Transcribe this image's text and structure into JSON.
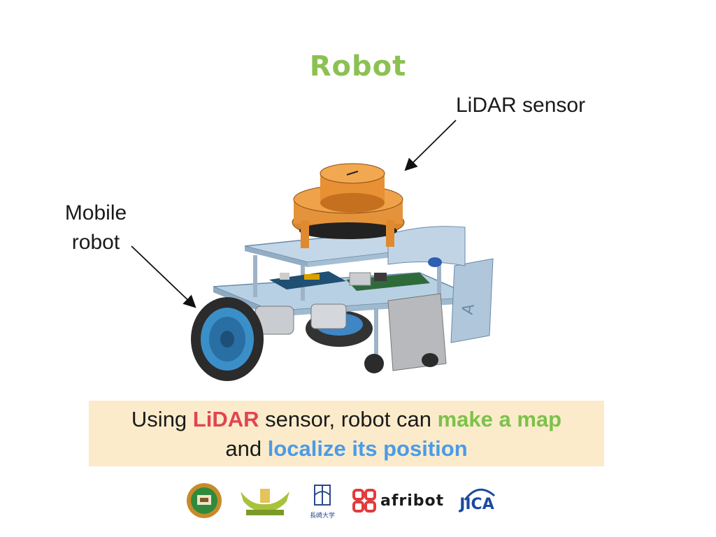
{
  "slide": {
    "title": "Robot",
    "labels": {
      "lidar": "LiDAR sensor",
      "mobile_line1": "Mobile",
      "mobile_line2": "robot"
    },
    "callout": {
      "p1": "Using ",
      "lidar": "LiDAR",
      "p2": " sensor, robot can ",
      "map": "make a map",
      "p3": "and ",
      "localize": "localize its position"
    },
    "logos": {
      "afribot": "afribot",
      "jica": "JICA",
      "nagasaki": "長崎大学"
    }
  },
  "colors": {
    "title": "#8cc152",
    "callout_bg": "#fbebcb",
    "highlight_red": "#e0454f",
    "highlight_green": "#7dc14a",
    "highlight_blue": "#4a9be8"
  },
  "icons": [
    "robot-illustration",
    "arrow-icon",
    "university-seal-logo",
    "emblem-logo",
    "nagasaki-university-logo",
    "afribot-logo",
    "jica-logo"
  ]
}
